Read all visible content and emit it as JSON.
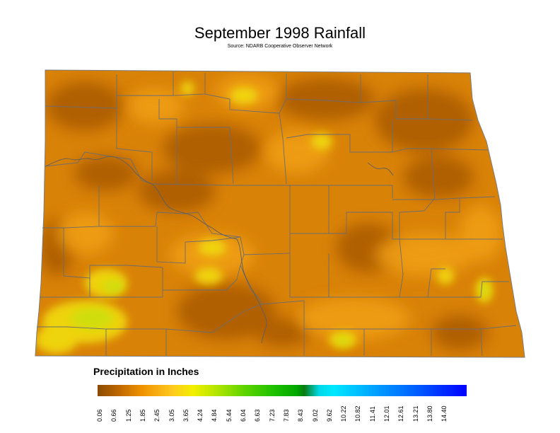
{
  "title": "September 1998 Rainfall",
  "source": "Source: NDARB Cooperative Observer Network",
  "legend": {
    "title": "Precipitation in Inches",
    "ticks": [
      "0.06",
      "0.66",
      "1.25",
      "1.85",
      "2.45",
      "3.05",
      "3.65",
      "4.24",
      "4.84",
      "5.44",
      "6.04",
      "6.63",
      "7.23",
      "7.83",
      "8.43",
      "9.02",
      "9.62",
      "10.22",
      "10.82",
      "11.41",
      "12.01",
      "12.61",
      "13.21",
      "13.80",
      "14.40"
    ],
    "colors": [
      "#8a4b00",
      "#d47a00",
      "#f2a000",
      "#ffd21a",
      "#f0f000",
      "#b8e800",
      "#70d800",
      "#28c800",
      "#00b000",
      "#009000",
      "#00b8c8",
      "#00e8ff",
      "#00b0ff",
      "#0070ff",
      "#0030ff",
      "#0000ff"
    ]
  },
  "map": {
    "region": "North Dakota",
    "colors": {
      "base": "#d98208",
      "dark": "#a95a04",
      "light": "#f4b020",
      "wet": "#e9e010",
      "border": "#6a6a6a"
    }
  }
}
